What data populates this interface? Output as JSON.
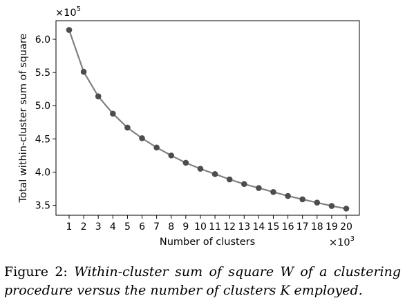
{
  "chart_data": {
    "type": "line",
    "title": "",
    "xlabel": "Number of clusters",
    "ylabel": "Total within-cluster sum of square",
    "x_multiplier": {
      "base": "×10",
      "exp": "3"
    },
    "y_multiplier": {
      "base": "×10",
      "exp": "5"
    },
    "x": [
      1,
      2,
      3,
      4,
      5,
      6,
      7,
      8,
      9,
      10,
      11,
      12,
      13,
      14,
      15,
      16,
      17,
      18,
      19,
      20
    ],
    "xticks": [
      "1",
      "2",
      "3",
      "4",
      "5",
      "6",
      "7",
      "8",
      "9",
      "10",
      "11",
      "12",
      "13",
      "14",
      "15",
      "16",
      "17",
      "18",
      "19",
      "20"
    ],
    "yticks": [
      3.5,
      4.0,
      4.5,
      5.0,
      5.5,
      6.0
    ],
    "ytick_labels": [
      "3.5",
      "4.0",
      "4.5",
      "5.0",
      "5.5",
      "6.0"
    ],
    "xlim": [
      0.1,
      20.9
    ],
    "ylim": [
      3.35,
      6.28
    ],
    "grid": false,
    "series": [
      {
        "values": [
          6.14,
          5.51,
          5.14,
          4.88,
          4.67,
          4.51,
          4.37,
          4.25,
          4.14,
          4.05,
          3.97,
          3.89,
          3.82,
          3.76,
          3.7,
          3.64,
          3.59,
          3.54,
          3.49,
          3.45
        ],
        "line_color": "#808080",
        "marker_color": "#4d4d4d"
      }
    ]
  },
  "caption": {
    "label": "Figure 2:",
    "text": "Within-cluster sum of square W of a clustering procedure versus the number of clusters K employed."
  }
}
